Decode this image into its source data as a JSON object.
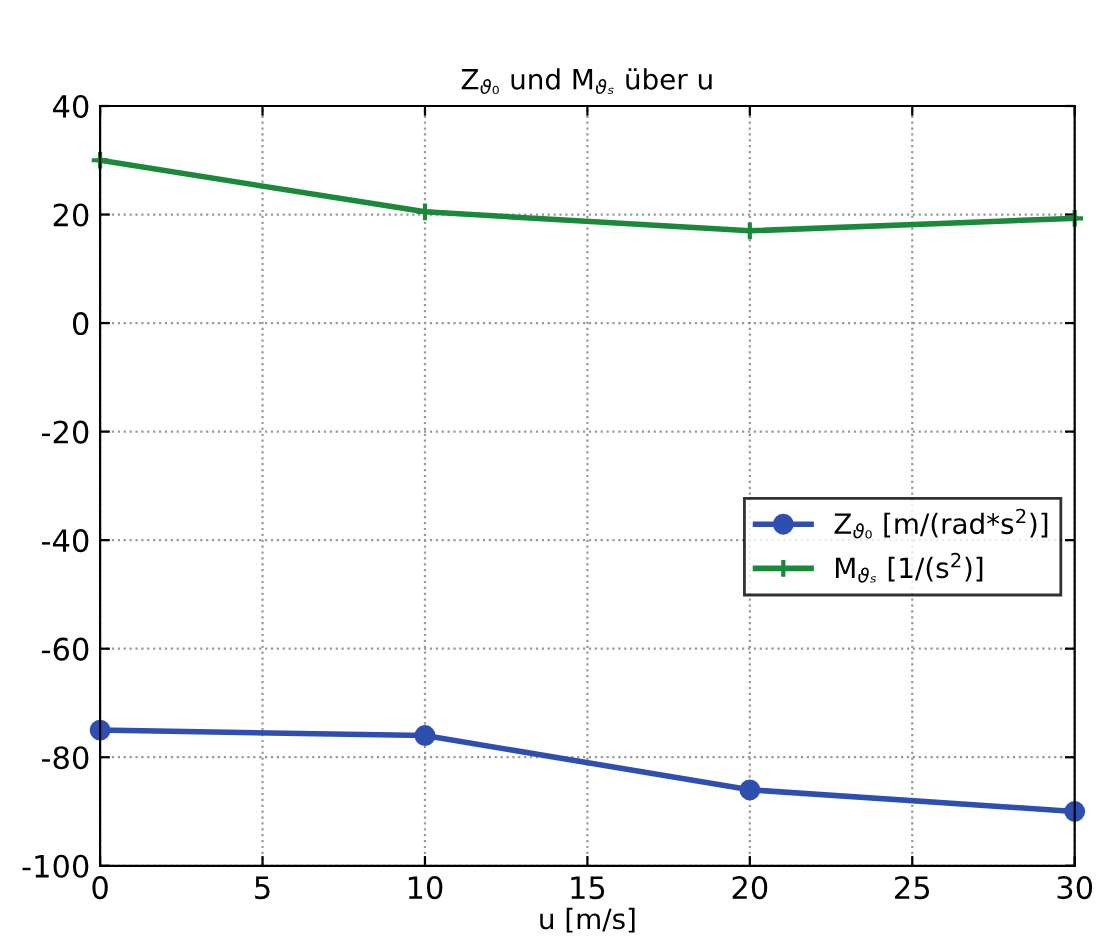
{
  "chart_data": {
    "type": "line",
    "title": "Z$_{ϑ₀}$ und M$_{ϑₛ}$ über u",
    "xlabel": "u [m/s]",
    "x": [
      0,
      10,
      20,
      30
    ],
    "series": [
      {
        "name": "Z$_{ϑ₀}$ [m/(rad*s$^{2}$)]",
        "color": "#2f4fb0",
        "marker": "circle",
        "values": [
          -75,
          -76,
          -86,
          -90
        ]
      },
      {
        "name": "M$_{ϑₛ}$ [1/(s$^{2}$)]",
        "color": "#1a8a3a",
        "marker": "cross",
        "values": [
          30,
          20.5,
          17,
          19.3
        ]
      }
    ],
    "xlim": [
      0,
      30
    ],
    "xticks": [
      0,
      5,
      10,
      15,
      20,
      25,
      30
    ],
    "ylim": [
      -100,
      40
    ],
    "yticks": [
      -100,
      -80,
      -60,
      -40,
      -20,
      0,
      20,
      40
    ],
    "grid": true,
    "legend": "right",
    "line_style": "solid"
  }
}
